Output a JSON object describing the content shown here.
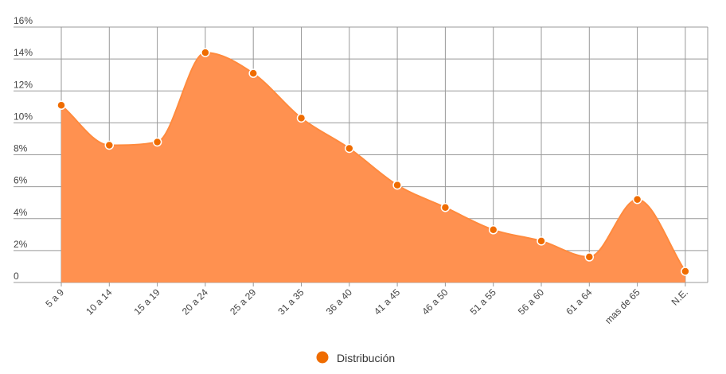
{
  "colors": {
    "area_fill": "#ff9150",
    "line": "#ff8a3d",
    "point_fill": "#ef6c00",
    "point_stroke": "#ffffff",
    "grid": "#999999"
  },
  "chart_data": {
    "type": "area",
    "title": "",
    "xlabel": "",
    "ylabel": "",
    "categories": [
      "5 a 9",
      "10 a 14",
      "15 a 19",
      "20 a 24",
      "25 a 29",
      "31 a 35",
      "36 a 40",
      "41 a 45",
      "46 a 50",
      "51 a 55",
      "56 a 60",
      "61 a 64",
      "mas de 65",
      "N.E."
    ],
    "series": [
      {
        "name": "Distribución",
        "values": [
          11.1,
          8.6,
          8.8,
          14.4,
          13.1,
          10.3,
          8.4,
          6.1,
          4.7,
          3.3,
          2.6,
          1.6,
          5.2,
          0.7
        ]
      }
    ],
    "ylim": [
      0,
      16
    ],
    "yticks": [
      0,
      2,
      4,
      6,
      8,
      10,
      12,
      14,
      16
    ],
    "ytick_labels": [
      "0",
      "2%",
      "4%",
      "6%",
      "8%",
      "10%",
      "12%",
      "14%",
      "16%"
    ],
    "grid": true,
    "legend": {
      "position": "bottom-center",
      "entries": [
        "Distribución"
      ]
    }
  }
}
